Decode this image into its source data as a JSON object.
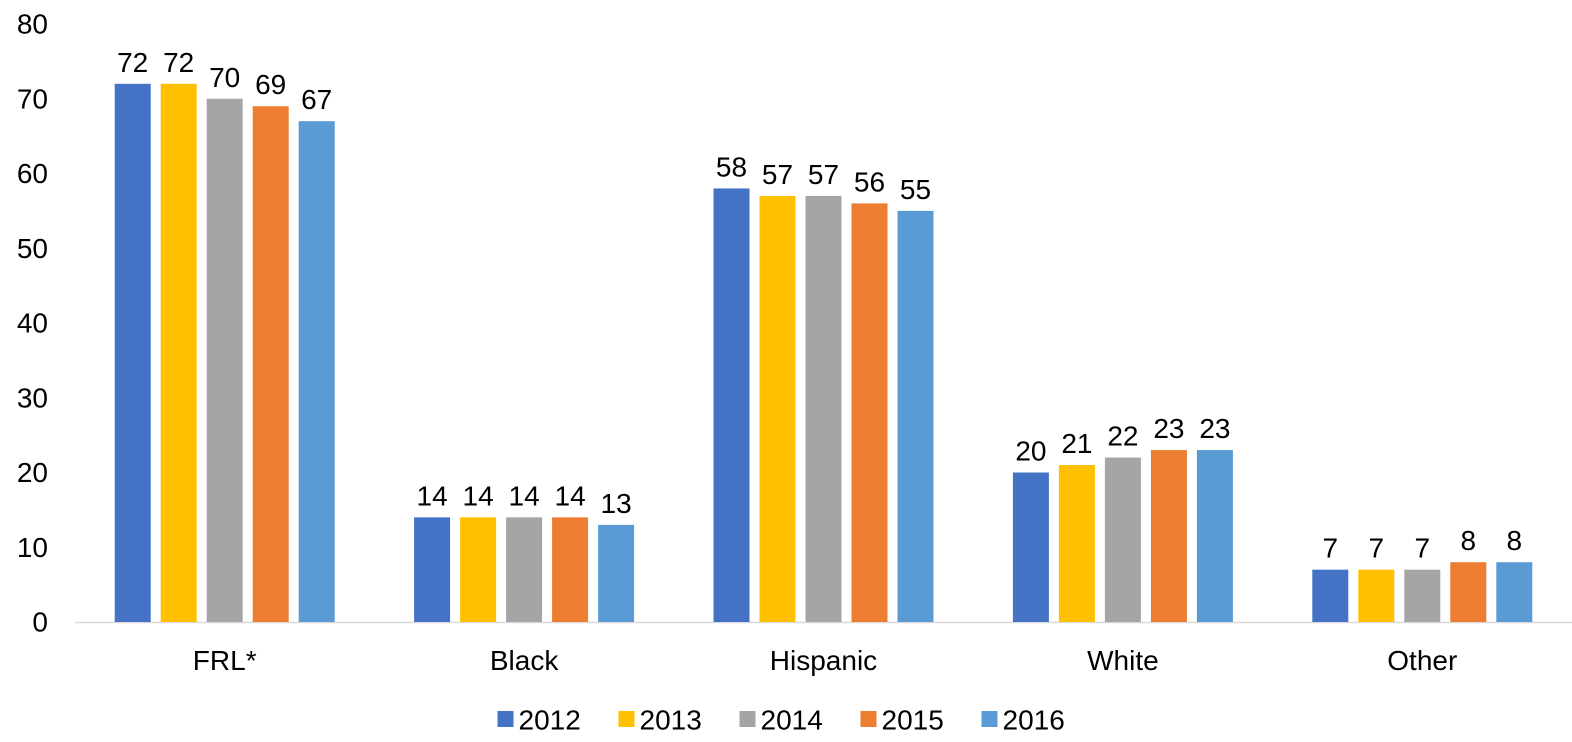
{
  "chart_data": {
    "type": "bar",
    "categories": [
      "FRL*",
      "Black",
      "Hispanic",
      "White",
      "Other"
    ],
    "series": [
      {
        "name": "2012",
        "color": "#4472C4",
        "values": [
          72,
          14,
          58,
          20,
          7
        ]
      },
      {
        "name": "2013",
        "color": "#FFC000",
        "values": [
          72,
          14,
          57,
          21,
          7
        ]
      },
      {
        "name": "2014",
        "color": "#A5A5A5",
        "values": [
          70,
          14,
          57,
          22,
          7
        ]
      },
      {
        "name": "2015",
        "color": "#ED7D31",
        "values": [
          69,
          14,
          56,
          23,
          8
        ]
      },
      {
        "name": "2016",
        "color": "#5B9BD5",
        "values": [
          67,
          13,
          55,
          23,
          8
        ]
      }
    ],
    "yticks": [
      "0",
      "10",
      "20",
      "30",
      "40",
      "50",
      "60",
      "70",
      "80"
    ],
    "ylim": [
      0,
      80
    ],
    "grid": false,
    "data_labels": true,
    "legend_position": "bottom"
  }
}
